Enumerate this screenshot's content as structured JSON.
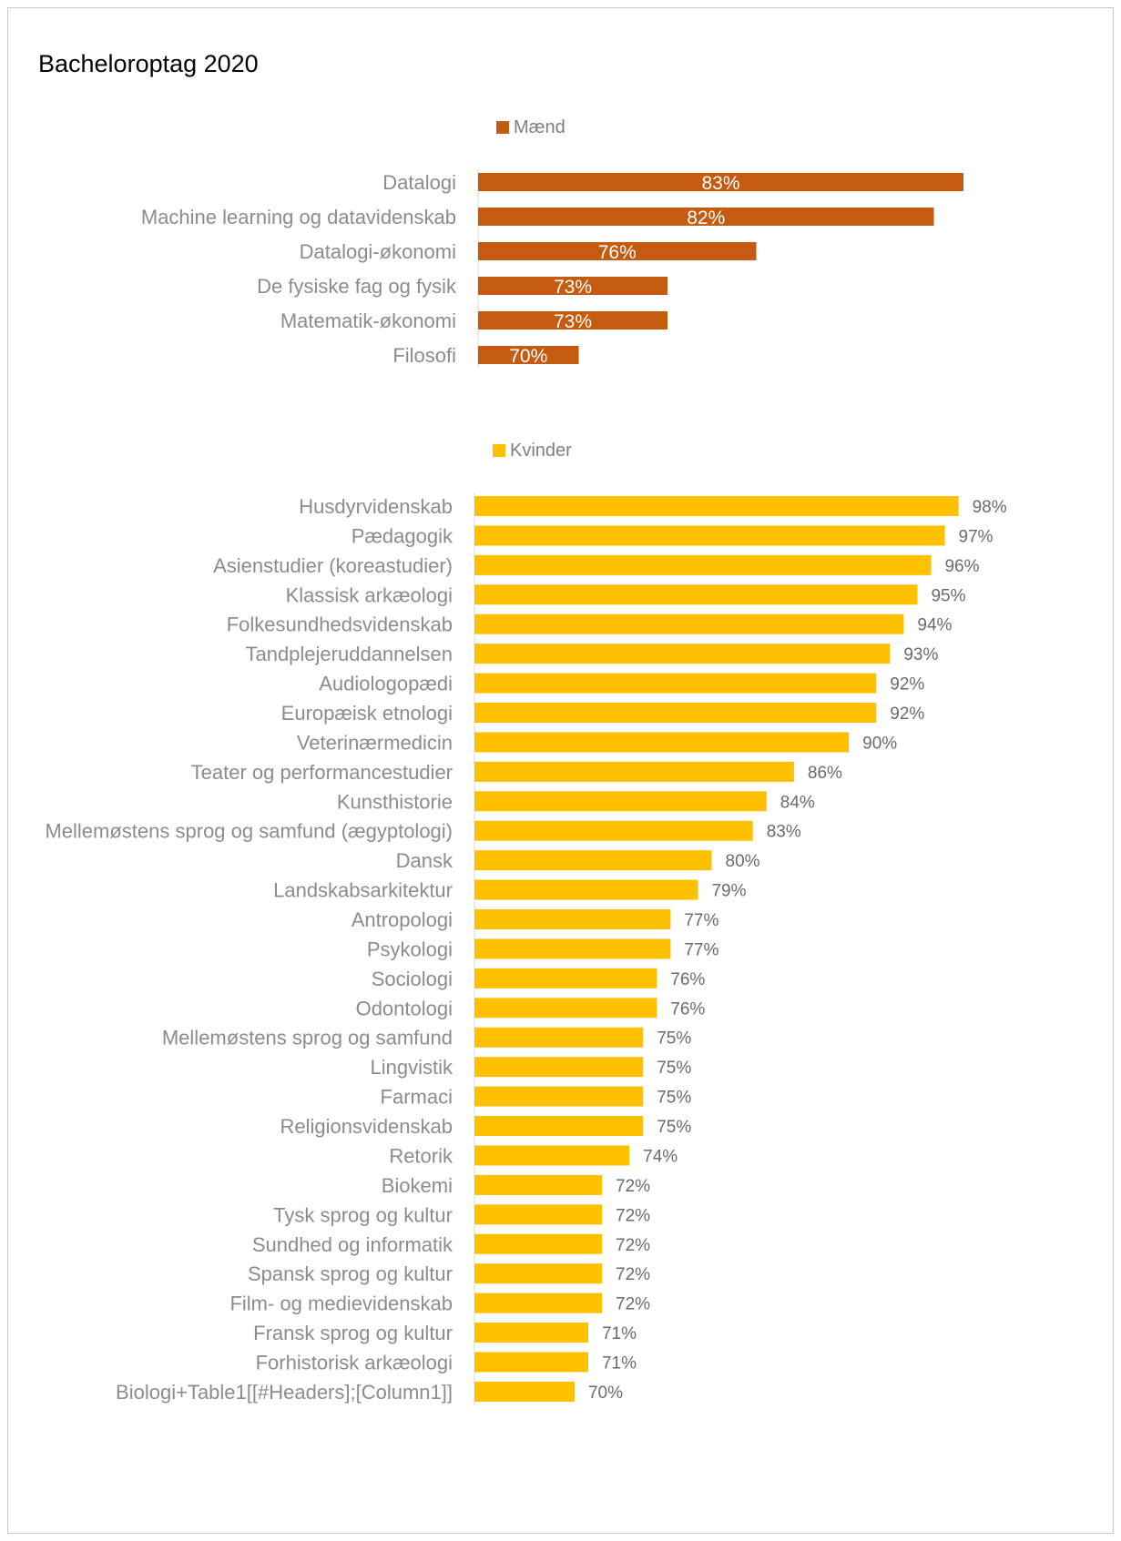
{
  "title": "Bacheloroptag 2020",
  "chart_data": [
    {
      "type": "bar",
      "orientation": "horizontal",
      "legend": "top-center",
      "grid": false,
      "series": [
        {
          "name": "Mænd",
          "color": "#C55A11"
        }
      ],
      "categories": [
        "Datalogi",
        "Machine learning og datavidenskab",
        "Datalogi-økonomi",
        "De fysiske fag og fysik",
        "Matematik-økonomi",
        "Filosofi"
      ],
      "values": [
        83,
        82,
        76,
        73,
        73,
        70
      ],
      "labels": [
        "83%",
        "82%",
        "76%",
        "73%",
        "73%",
        "70%"
      ],
      "label_position": "inside-center"
    },
    {
      "type": "bar",
      "orientation": "horizontal",
      "legend": "top-center",
      "grid": false,
      "series": [
        {
          "name": "Kvinder",
          "color": "#FFC000"
        }
      ],
      "categories": [
        "Husdyrvidenskab",
        "Pædagogik",
        "Asienstudier (koreastudier)",
        "Klassisk arkæologi",
        "Folkesundhedsvidenskab",
        "Tandplejeruddannelsen",
        "Audiologopædi",
        "Europæisk etnologi",
        "Veterinærmedicin",
        "Teater og performancestudier",
        "Kunsthistorie",
        "Mellemøstens sprog og samfund (ægyptologi)",
        "Dansk",
        "Landskabsarkitektur",
        "Antropologi",
        "Psykologi",
        "Sociologi",
        "Odontologi",
        "Mellemøstens sprog og samfund ",
        "Lingvistik",
        "Farmaci",
        "Religionsvidenskab",
        "Retorik",
        "Biokemi",
        "Tysk sprog og kultur",
        "Sundhed og informatik",
        "Spansk sprog og kultur",
        "Film- og medievidenskab",
        "Fransk sprog og kultur",
        "Forhistorisk arkæologi",
        "Biologi+Table1[[#Headers];[Column1]]"
      ],
      "values": [
        98,
        97,
        96,
        95,
        94,
        93,
        92,
        92,
        90,
        86,
        84,
        83,
        80,
        79,
        77,
        77,
        76,
        76,
        75,
        75,
        75,
        75,
        74,
        72,
        72,
        72,
        72,
        72,
        71,
        71,
        70
      ],
      "labels": [
        "98%",
        "97%",
        "96%",
        "95%",
        "94%",
        "93%",
        "92%",
        "92%",
        "90%",
        "86%",
        "84%",
        "83%",
        "80%",
        "79%",
        "77%",
        "77%",
        "76%",
        "76%",
        "75%",
        "75%",
        "75%",
        "75%",
        "74%",
        "72%",
        "72%",
        "72%",
        "72%",
        "72%",
        "71%",
        "71%",
        "70%"
      ],
      "label_position": "outside-end"
    }
  ]
}
